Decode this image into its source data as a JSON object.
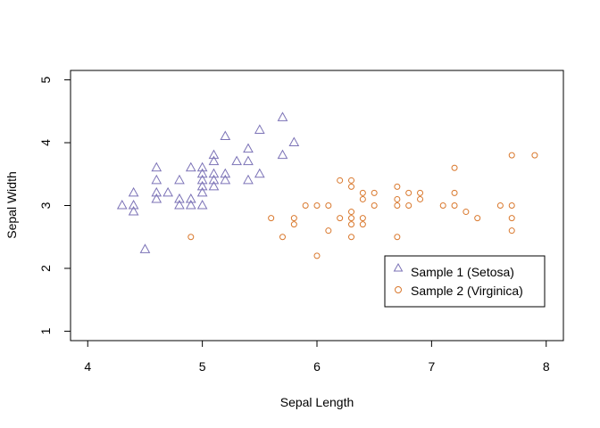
{
  "chart_data": {
    "type": "scatter",
    "title": "",
    "xlabel": "Sepal Length",
    "ylabel": "Sepal Width",
    "xlim": [
      3.85,
      8.15
    ],
    "ylim": [
      0.85,
      5.15
    ],
    "x_ticks": [
      4,
      5,
      6,
      7,
      8
    ],
    "y_ticks": [
      1,
      2,
      3,
      4,
      5
    ],
    "x_tick_labels": [
      "4",
      "5",
      "6",
      "7",
      "8"
    ],
    "y_tick_labels": [
      "1",
      "2",
      "3",
      "4",
      "5"
    ],
    "grid": false,
    "legend_position": "bottom-right",
    "series": [
      {
        "name": "Sample 1 (Setosa)",
        "marker": "triangle-open",
        "color": "#7b72b6",
        "points": [
          [
            4.3,
            3.0
          ],
          [
            4.4,
            3.2
          ],
          [
            4.4,
            3.0
          ],
          [
            4.4,
            2.9
          ],
          [
            4.5,
            2.3
          ],
          [
            4.6,
            3.6
          ],
          [
            4.6,
            3.4
          ],
          [
            4.6,
            3.2
          ],
          [
            4.6,
            3.1
          ],
          [
            4.7,
            3.2
          ],
          [
            4.8,
            3.4
          ],
          [
            4.8,
            3.1
          ],
          [
            4.8,
            3.0
          ],
          [
            4.9,
            3.6
          ],
          [
            4.9,
            3.1
          ],
          [
            4.9,
            3.0
          ],
          [
            5.0,
            3.6
          ],
          [
            5.0,
            3.5
          ],
          [
            5.0,
            3.4
          ],
          [
            5.0,
            3.3
          ],
          [
            5.0,
            3.2
          ],
          [
            5.0,
            3.0
          ],
          [
            5.1,
            3.8
          ],
          [
            5.1,
            3.7
          ],
          [
            5.1,
            3.5
          ],
          [
            5.1,
            3.4
          ],
          [
            5.1,
            3.3
          ],
          [
            5.2,
            4.1
          ],
          [
            5.2,
            3.5
          ],
          [
            5.2,
            3.4
          ],
          [
            5.3,
            3.7
          ],
          [
            5.4,
            3.9
          ],
          [
            5.4,
            3.7
          ],
          [
            5.4,
            3.4
          ],
          [
            5.5,
            4.2
          ],
          [
            5.5,
            3.5
          ],
          [
            5.7,
            4.4
          ],
          [
            5.7,
            3.8
          ],
          [
            5.8,
            4.0
          ]
        ]
      },
      {
        "name": "Sample 2 (Virginica)",
        "marker": "circle-open",
        "color": "#d9782d",
        "points": [
          [
            4.9,
            2.5
          ],
          [
            5.6,
            2.8
          ],
          [
            5.7,
            2.5
          ],
          [
            5.8,
            2.8
          ],
          [
            5.8,
            2.7
          ],
          [
            5.9,
            3.0
          ],
          [
            6.0,
            3.0
          ],
          [
            6.0,
            2.2
          ],
          [
            6.1,
            3.0
          ],
          [
            6.1,
            2.6
          ],
          [
            6.2,
            3.4
          ],
          [
            6.2,
            2.8
          ],
          [
            6.3,
            3.4
          ],
          [
            6.3,
            3.3
          ],
          [
            6.3,
            2.9
          ],
          [
            6.3,
            2.8
          ],
          [
            6.3,
            2.7
          ],
          [
            6.3,
            2.5
          ],
          [
            6.4,
            3.2
          ],
          [
            6.4,
            3.1
          ],
          [
            6.4,
            2.8
          ],
          [
            6.4,
            2.7
          ],
          [
            6.5,
            3.2
          ],
          [
            6.5,
            3.0
          ],
          [
            6.7,
            3.3
          ],
          [
            6.7,
            3.1
          ],
          [
            6.7,
            3.0
          ],
          [
            6.7,
            2.5
          ],
          [
            6.8,
            3.2
          ],
          [
            6.8,
            3.0
          ],
          [
            6.9,
            3.2
          ],
          [
            6.9,
            3.1
          ],
          [
            7.1,
            3.0
          ],
          [
            7.2,
            3.6
          ],
          [
            7.2,
            3.2
          ],
          [
            7.2,
            3.0
          ],
          [
            7.3,
            2.9
          ],
          [
            7.4,
            2.8
          ],
          [
            7.6,
            3.0
          ],
          [
            7.7,
            3.8
          ],
          [
            7.7,
            3.0
          ],
          [
            7.7,
            2.8
          ],
          [
            7.7,
            2.6
          ],
          [
            7.9,
            3.8
          ]
        ]
      }
    ]
  }
}
